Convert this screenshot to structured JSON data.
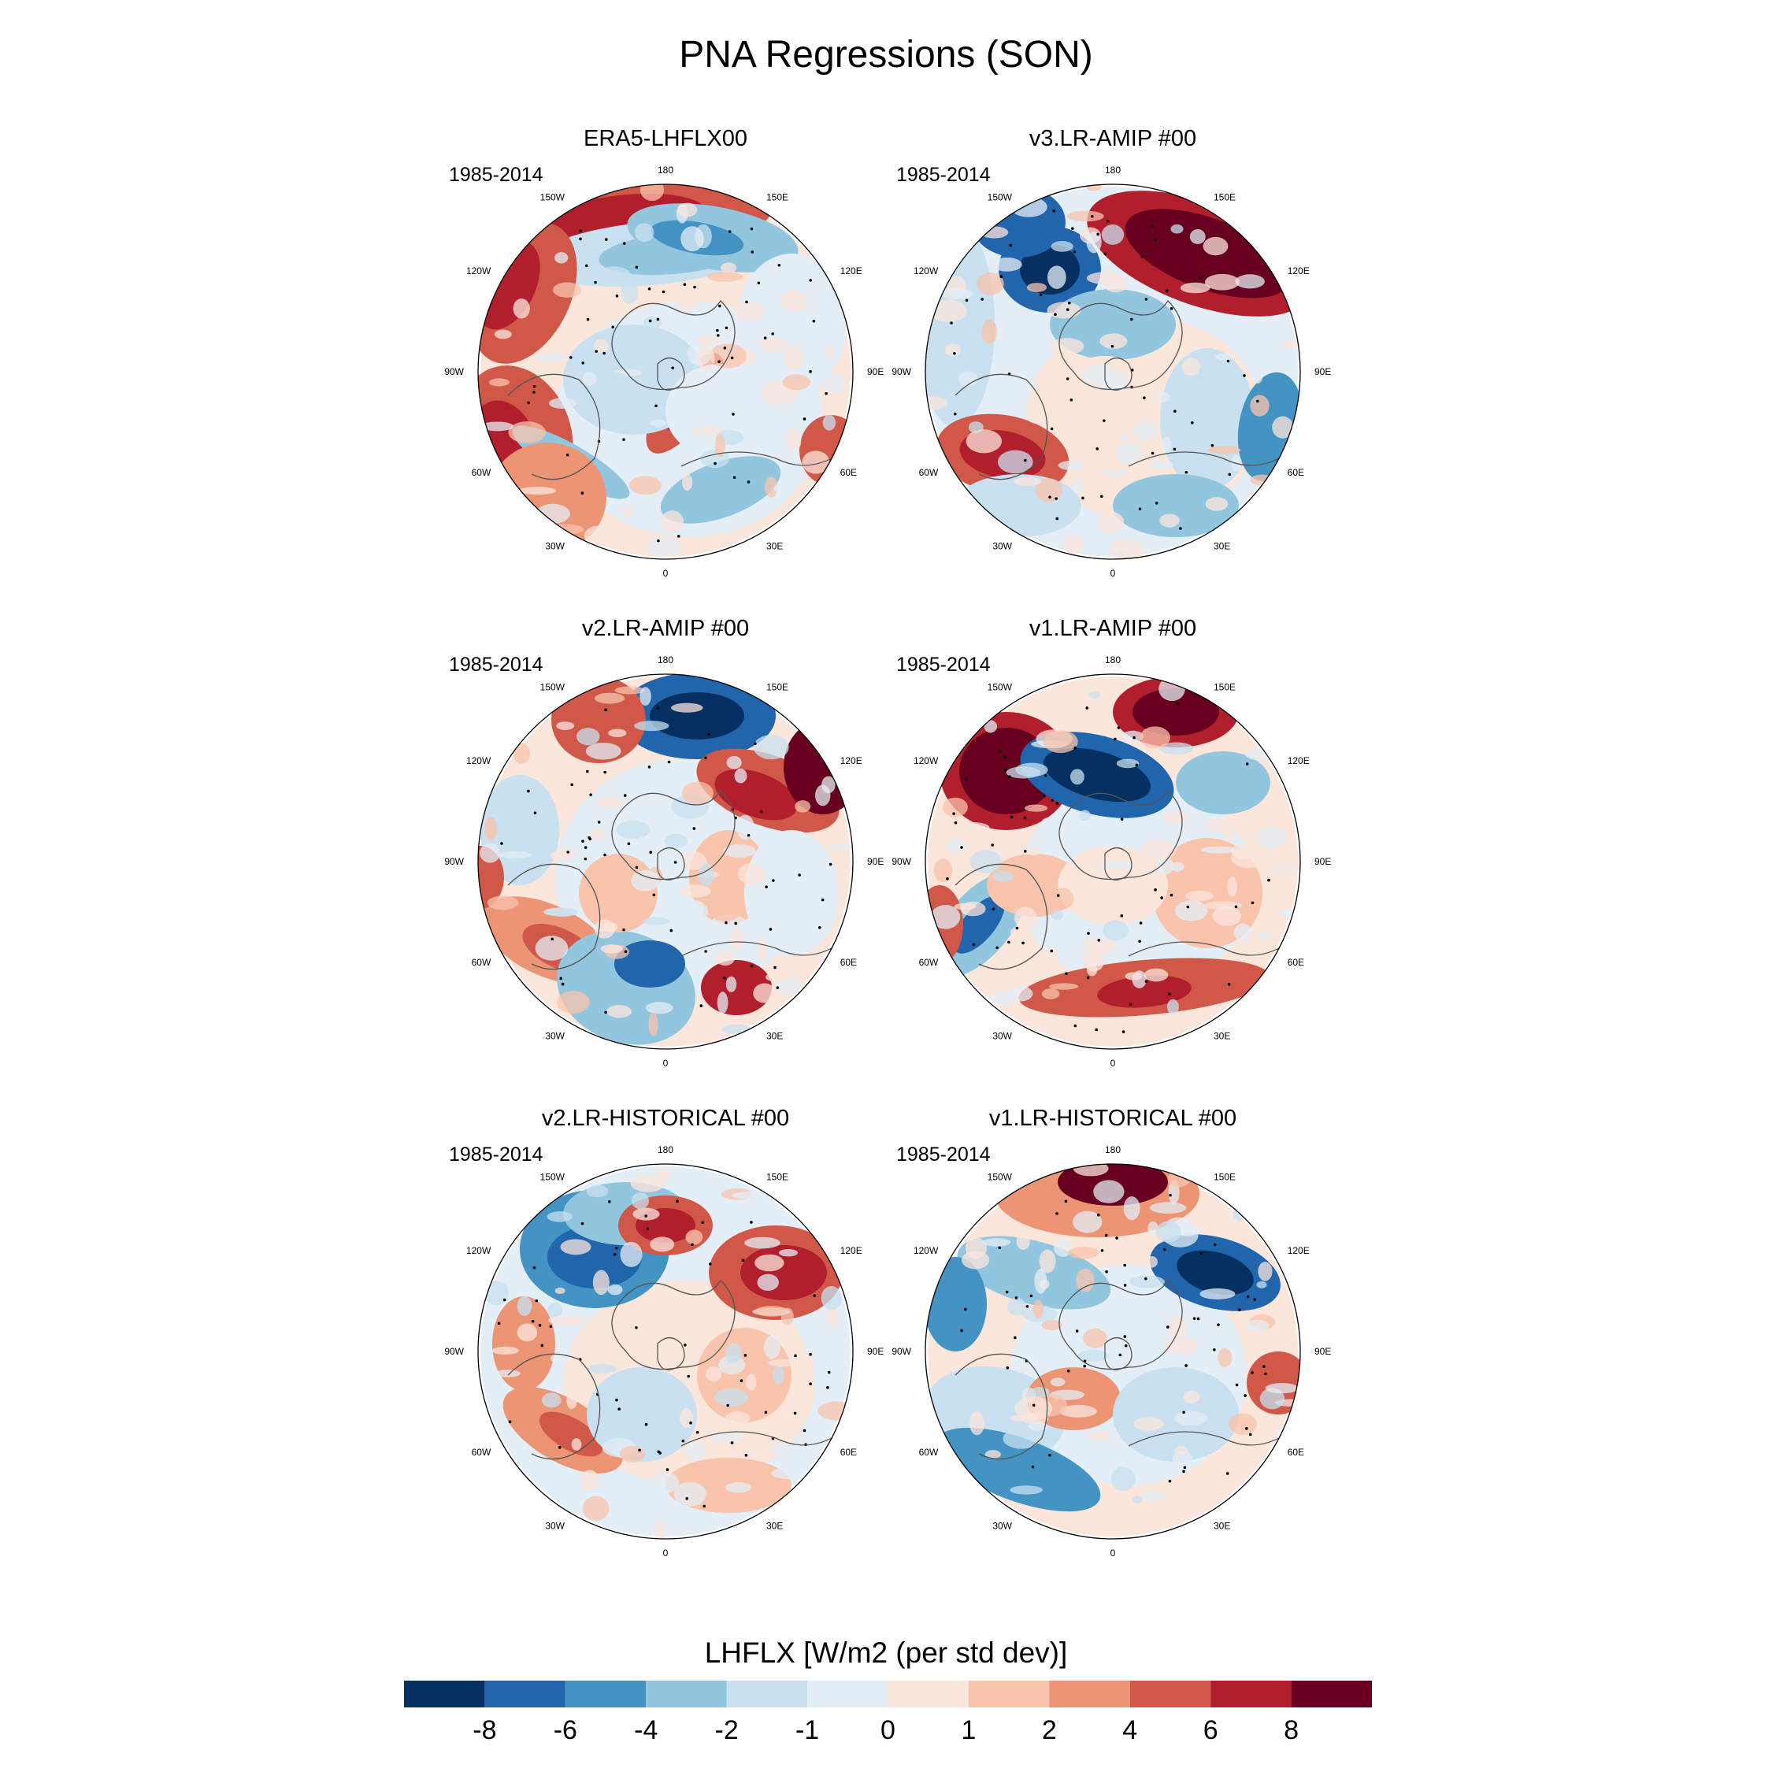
{
  "figure": {
    "title": "PNA Regressions (SON)"
  },
  "panels": [
    {
      "title": "ERA5-LHFLX00",
      "period": "1985-2014",
      "pattern": 0
    },
    {
      "title": "v3.LR-AMIP  #00",
      "period": "1985-2014",
      "pattern": 1
    },
    {
      "title": "v2.LR-AMIP  #00",
      "period": "1985-2014",
      "pattern": 2
    },
    {
      "title": "v1.LR-AMIP  #00",
      "period": "1985-2014",
      "pattern": 3
    },
    {
      "title": "v2.LR-HISTORICAL  #00",
      "period": "1985-2014",
      "pattern": 4
    },
    {
      "title": "v1.LR-HISTORICAL  #00",
      "period": "1985-2014",
      "pattern": 5
    }
  ],
  "longitude_labels": [
    "180",
    "150E",
    "120E",
    "90E",
    "60E",
    "30E",
    "0",
    "30W",
    "60W",
    "90W",
    "120W",
    "150W"
  ],
  "colorbar": {
    "title": "LHFLX [W/m2 (per std dev)]",
    "tick_labels": [
      "-8",
      "-6",
      "-4",
      "-2",
      "-1",
      "0",
      "1",
      "2",
      "4",
      "6",
      "8"
    ],
    "colors": [
      "#053061",
      "#2166ac",
      "#4393c3",
      "#92c5de",
      "#c8e0ef",
      "#e4eef6",
      "#fbe6dc",
      "#f8c4ac",
      "#eb9574",
      "#d05848",
      "#b21f2c",
      "#67001f"
    ]
  }
}
